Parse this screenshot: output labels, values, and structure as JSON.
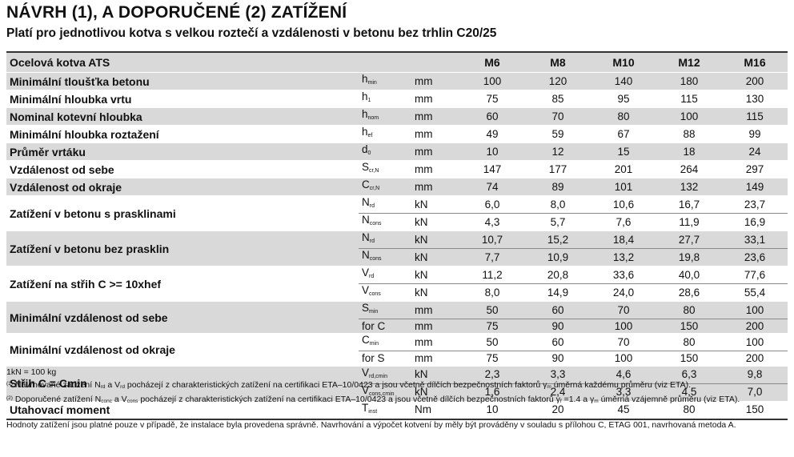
{
  "title": "NÁVRH (1), A DOPORUČENÉ (2) ZATÍŽENÍ",
  "subtitle": "Platí pro jednotlivou kotva s velkou roztečí a vzdálenosti v betonu bez trhlin C20/25",
  "table": {
    "header": {
      "name": "Ocelová kotva ATS",
      "sizes": [
        "M6",
        "M8",
        "M10",
        "M12",
        "M16"
      ]
    },
    "rows": [
      {
        "name": "Minimální tloušťka betonu",
        "sym": "h",
        "sub": "min",
        "unit": "mm",
        "v": [
          "100",
          "120",
          "140",
          "180",
          "200"
        ]
      },
      {
        "name": "Minimální hloubka vrtu",
        "sym": "h",
        "sub": "1",
        "unit": "mm",
        "v": [
          "75",
          "85",
          "95",
          "115",
          "130"
        ]
      },
      {
        "name": "Nominal kotevní hloubka",
        "sym": "h",
        "sub": "nom",
        "unit": "mm",
        "v": [
          "60",
          "70",
          "80",
          "100",
          "115"
        ]
      },
      {
        "name": "Minimální hloubka roztažení",
        "sym": "h",
        "sub": "ef",
        "unit": "mm",
        "v": [
          "49",
          "59",
          "67",
          "88",
          "99"
        ]
      },
      {
        "name": "Průměr vrtáku",
        "sym": "d",
        "sub": "0",
        "unit": "mm",
        "v": [
          "10",
          "12",
          "15",
          "18",
          "24"
        ]
      },
      {
        "name": "Vzdálenost od sebe",
        "sym": "S",
        "sub": "cr,N",
        "unit": "mm",
        "v": [
          "147",
          "177",
          "201",
          "264",
          "297"
        ]
      },
      {
        "name": "Vzdálenost od okraje",
        "sym": "C",
        "sub": "cr,N",
        "unit": "mm",
        "v": [
          "74",
          "89",
          "101",
          "132",
          "149"
        ]
      },
      {
        "name": "Zatížení v betonu s prasklinami",
        "a": {
          "sym": "N",
          "sub": "rd",
          "unit": "kN",
          "v": [
            "6,0",
            "8,0",
            "10,6",
            "16,7",
            "23,7"
          ]
        },
        "b": {
          "sym": "N",
          "sub": "cons",
          "unit": "kN",
          "v": [
            "4,3",
            "5,7",
            "7,6",
            "11,9",
            "16,9"
          ]
        }
      },
      {
        "name": "Zatížení v betonu bez prasklin",
        "a": {
          "sym": "N",
          "sub": "rd",
          "unit": "kN",
          "v": [
            "10,7",
            "15,2",
            "18,4",
            "27,7",
            "33,1"
          ]
        },
        "b": {
          "sym": "N",
          "sub": "cons",
          "unit": "kN",
          "v": [
            "7,7",
            "10,9",
            "13,2",
            "19,8",
            "23,6"
          ]
        }
      },
      {
        "name": "Zatížení na střih C >= 10xhef",
        "a": {
          "sym": "V",
          "sub": "rd",
          "unit": "kN",
          "v": [
            "11,2",
            "20,8",
            "33,6",
            "40,0",
            "77,6"
          ]
        },
        "b": {
          "sym": "V",
          "sub": "cons",
          "unit": "kN",
          "v": [
            "8,0",
            "14,9",
            "24,0",
            "28,6",
            "55,4"
          ]
        }
      },
      {
        "name": "Minimální vzdálenost od sebe",
        "a": {
          "sym": "S",
          "sub": "min",
          "unit": "mm",
          "v": [
            "50",
            "60",
            "70",
            "80",
            "100"
          ]
        },
        "b": {
          "sym": "for C",
          "sub": "",
          "unit": "mm",
          "v": [
            "75",
            "90",
            "100",
            "150",
            "200"
          ]
        }
      },
      {
        "name": "Minimální vzdálenost od okraje",
        "a": {
          "sym": "C",
          "sub": "min",
          "unit": "mm",
          "v": [
            "50",
            "60",
            "70",
            "80",
            "100"
          ]
        },
        "b": {
          "sym": "for S",
          "sub": "",
          "unit": "mm",
          "v": [
            "75",
            "90",
            "100",
            "150",
            "200"
          ]
        }
      },
      {
        "name": "Střih C = Cmin",
        "a": {
          "sym": "V",
          "sub": "rd,cmin",
          "unit": "kN",
          "v": [
            "2,3",
            "3,3",
            "4,6",
            "6,3",
            "9,8"
          ]
        },
        "b": {
          "sym": "V",
          "sub": "cons,cmin",
          "unit": "kN",
          "v": [
            "1,6",
            "2,4",
            "3,3",
            "4,5",
            "7,0"
          ]
        }
      },
      {
        "name": "Utahovací moment",
        "sym": "T",
        "sub": "inst",
        "unit": "Nm",
        "v": [
          "10",
          "20",
          "45",
          "80",
          "150"
        ]
      }
    ]
  },
  "notes": {
    "kn": "1kN = 100 kg",
    "n1": {
      "mark": "(1)",
      "p1": " Navrhované zatížení N",
      "s1": "rd",
      "p2": " a V",
      "s2": "rd",
      "p3": "  pocházejí z charakteristických zatížení na certifikaci ETA–10/0423 a jsou včetně dílčích bezpečnostních faktorů γ",
      "s3": "m",
      "p4": " úměrná každému průměru (viz ETA)."
    },
    "n2": {
      "mark": "(2)",
      "p1": " Doporučené zatížení N",
      "s1": "conc",
      "p2": "  a V",
      "s2": "cons",
      "p3": "  pocházejí z charakteristických zatížení na certifikaci ETA–10/0423 a jsou včetně dílčích bezpečnostních faktorů  γ",
      "s3": "f",
      "p4": " =1.4 a  γ",
      "s4": "m",
      "p5": " úměrná vzájemně průměru (viz ETA)."
    },
    "footer": "Hodnoty zatížení jsou platné pouze v případě, že instalace byla provedena správně. Navrhování a výpočet kotvení by měly být prováděny v souladu s přílohou C, ETAG 001, navrhovaná metoda A."
  }
}
